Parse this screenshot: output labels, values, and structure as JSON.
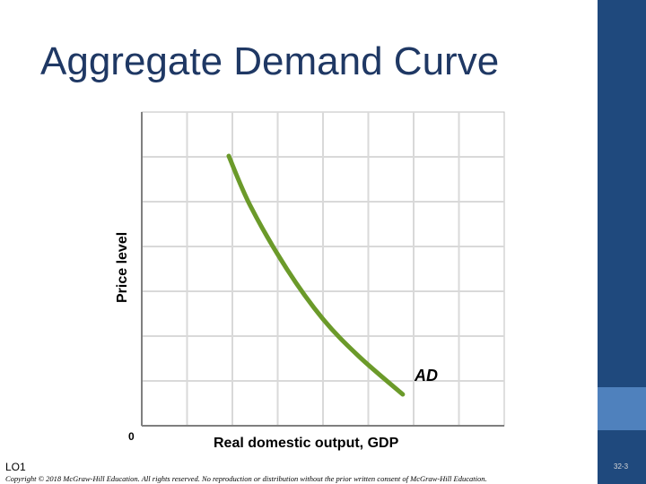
{
  "slide": {
    "title": "Aggregate Demand Curve",
    "lo_label": "LO1",
    "copyright": "Copyright © 2018 McGraw-Hill Education. All rights reserved. No reproduction or distribution without the prior written consent of McGraw-Hill Education.",
    "slide_number": "32-3",
    "colors": {
      "title": "#1f3864",
      "sidebar_dark": "#1f497d",
      "sidebar_light": "#4f81bd",
      "curve": "#6b9a2a",
      "grid": "#d9d9d9"
    }
  },
  "chart_data": {
    "type": "line",
    "title": "",
    "xlabel": "Real domestic output, GDP",
    "ylabel": "Price level",
    "origin_label": "0",
    "xlim": [
      0,
      10
    ],
    "ylim": [
      0,
      10
    ],
    "grid": true,
    "series": [
      {
        "name": "AD",
        "x": [
          2.4,
          3.0,
          4.0,
          5.0,
          6.0,
          7.2
        ],
        "y": [
          8.6,
          7.0,
          5.0,
          3.4,
          2.2,
          1.0
        ]
      }
    ]
  }
}
